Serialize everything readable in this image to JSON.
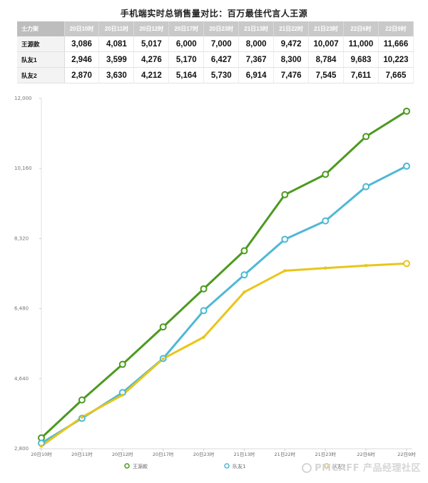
{
  "title": "手机端实时总销售量对比：百万最佳代言人王源",
  "table": {
    "corner_label": "士力架",
    "columns": [
      "20日10时",
      "20日11时",
      "20日12时",
      "20日17时",
      "20日23时",
      "21日13时",
      "21日22时",
      "21日23时",
      "22日6时",
      "22日9时"
    ],
    "rows": [
      {
        "name": "王源款",
        "values": [
          "3,086",
          "4,081",
          "5,017",
          "6,000",
          "7,000",
          "8,000",
          "9,472",
          "10,007",
          "11,000",
          "11,666"
        ]
      },
      {
        "name": "队友1",
        "values": [
          "2,946",
          "3,599",
          "4,276",
          "5,170",
          "6,427",
          "7,367",
          "8,300",
          "8,784",
          "9,683",
          "10,223"
        ]
      },
      {
        "name": "队友2",
        "values": [
          "2,870",
          "3,630",
          "4,212",
          "5,164",
          "5,730",
          "6,914",
          "7,476",
          "7,545",
          "7,611",
          "7,665"
        ]
      }
    ]
  },
  "chart_data": {
    "type": "line",
    "categories": [
      "20日10时",
      "20日11时",
      "20日12时",
      "20日17时",
      "20日23时",
      "21日13时",
      "21日22时",
      "21日23时",
      "22日6时",
      "22日9时"
    ],
    "y_ticks": [
      "2,800",
      "4,640",
      "6,480",
      "8,320",
      "10,160",
      "12,000"
    ],
    "ylim": [
      2800,
      12000
    ],
    "grid": false,
    "legend_position": "bottom",
    "series": [
      {
        "name": "王源款",
        "color": "#4c9a1f",
        "values": [
          3086,
          4081,
          5017,
          6000,
          7000,
          8000,
          9472,
          10007,
          11000,
          11666
        ]
      },
      {
        "name": "队友1",
        "color": "#4fb8d4",
        "values": [
          2946,
          3599,
          4276,
          5170,
          6427,
          7367,
          8300,
          8784,
          9683,
          10223
        ]
      },
      {
        "name": "队友2",
        "color": "#e8c61a",
        "values": [
          2870,
          3630,
          4212,
          5164,
          5730,
          6914,
          7476,
          7545,
          7611,
          7665
        ]
      }
    ]
  },
  "watermark": "PMCAFF 产品经理社区"
}
